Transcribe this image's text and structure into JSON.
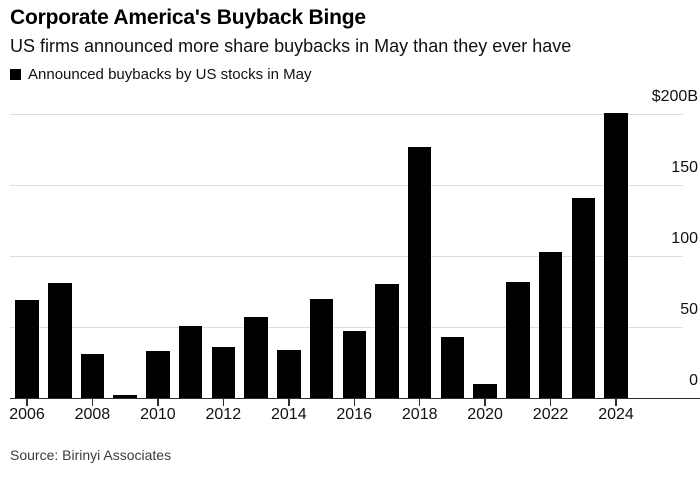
{
  "header": {
    "title": "Corporate America's Buyback Binge",
    "subtitle": "US firms announced more share buybacks in May than they ever have"
  },
  "legend": {
    "marker_icon": "black-square-icon",
    "label": "Announced buybacks by US stocks in May"
  },
  "source": "Source: Birinyi Associates",
  "colors": {
    "bar": "#000000",
    "gridline": "#dedede",
    "axis_line": "#2e2e2e",
    "title_text": "#000000",
    "body_text": "#111111",
    "source_text": "#3c3c3c",
    "background": "#ffffff"
  },
  "chart_data": {
    "type": "bar",
    "title": "Corporate America's Buyback Binge",
    "subtitle": "US firms announced more share buybacks in May than they ever have",
    "series_name": "Announced buybacks by US stocks in May",
    "unit": "billions of US dollars",
    "categories": [
      2006,
      2007,
      2008,
      2009,
      2010,
      2011,
      2012,
      2013,
      2014,
      2015,
      2016,
      2017,
      2018,
      2019,
      2020,
      2021,
      2022,
      2023,
      2024
    ],
    "values": [
      69,
      81,
      31,
      2,
      33,
      51,
      36,
      57,
      34,
      70,
      47,
      80,
      177,
      43,
      10,
      82,
      103,
      141,
      201
    ],
    "x_tick_labels": [
      "2006",
      "2008",
      "2010",
      "2012",
      "2014",
      "2016",
      "2018",
      "2020",
      "2022",
      "2024"
    ],
    "y_ticks": [
      0,
      50,
      100,
      150,
      200
    ],
    "y_tick_labels": [
      "0",
      "50",
      "100",
      "150",
      "$200B"
    ],
    "ylim": [
      0,
      200
    ],
    "grid": "horizontal",
    "y_axis_side": "right",
    "legend_position": "top-left",
    "source": "Source: Birinyi Associates"
  }
}
